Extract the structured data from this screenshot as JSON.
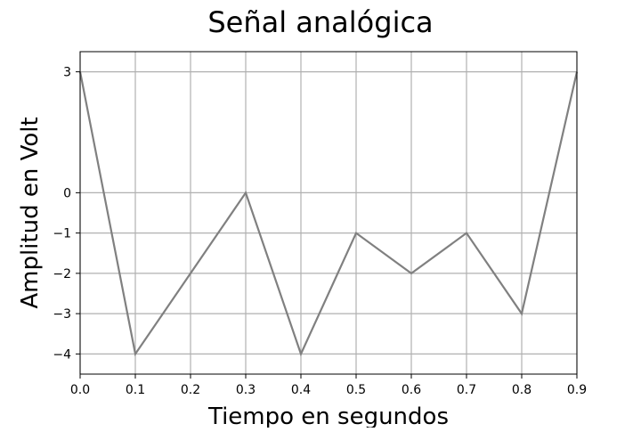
{
  "chart_data": {
    "type": "line",
    "title": "Señal analógica",
    "xlabel": "Tiempo en segundos",
    "ylabel": "Amplitud en Volt",
    "x": [
      0.0,
      0.1,
      0.2,
      0.3,
      0.4,
      0.5,
      0.6,
      0.7,
      0.8,
      0.9
    ],
    "series": [
      {
        "values": [
          3,
          -4,
          -2,
          0,
          -4,
          -1,
          -2,
          -1,
          -3,
          3
        ],
        "color": "#808080"
      }
    ],
    "xlim": [
      0.0,
      0.9
    ],
    "ylim": [
      -4.5,
      3.5
    ],
    "xticks": [
      0.0,
      0.1,
      0.2,
      0.3,
      0.4,
      0.5,
      0.6,
      0.7,
      0.8,
      0.9
    ],
    "xtick_labels": [
      "0.0",
      "0.1",
      "0.2",
      "0.3",
      "0.4",
      "0.5",
      "0.6",
      "0.7",
      "0.8",
      "0.9"
    ],
    "yticks": [
      3,
      0,
      -1,
      -2,
      -3,
      -4
    ],
    "ytick_labels": [
      "3",
      "0",
      "−1",
      "−2",
      "−3",
      "−4"
    ],
    "grid": true,
    "grid_color": "#b0b0b0",
    "line_color": "#808080"
  }
}
